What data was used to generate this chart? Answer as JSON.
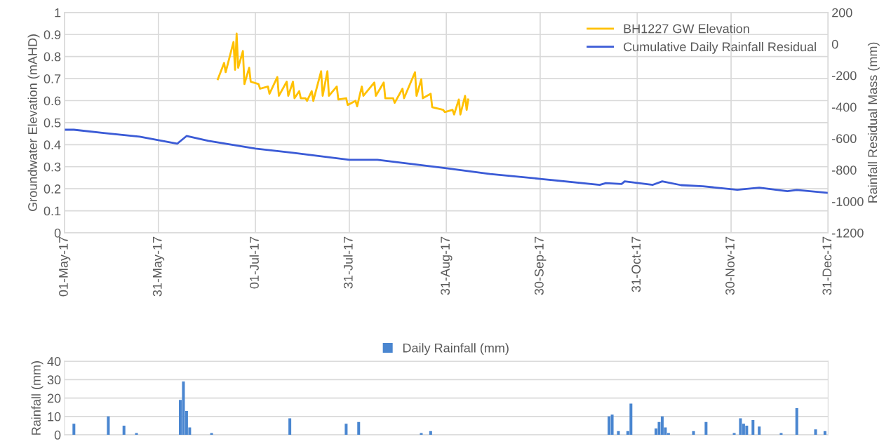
{
  "chart_data": [
    {
      "type": "line",
      "ylabel": "Groundwater Elevation (mAHD)",
      "y2label": "Rainfall Residual Mass (mm)",
      "xlim": [
        "2017-05-01",
        "2017-12-31"
      ],
      "xticks": [
        {
          "value": "2017-05-01",
          "label": "01-May-17"
        },
        {
          "value": "2017-05-31",
          "label": "31-May-17"
        },
        {
          "value": "2017-07-01",
          "label": "01-Jul-17"
        },
        {
          "value": "2017-07-31",
          "label": "31-Jul-17"
        },
        {
          "value": "2017-08-31",
          "label": "31-Aug-17"
        },
        {
          "value": "2017-09-30",
          "label": "30-Sep-17"
        },
        {
          "value": "2017-10-31",
          "label": "31-Oct-17"
        },
        {
          "value": "2017-11-30",
          "label": "30-Nov-17"
        },
        {
          "value": "2017-12-31",
          "label": "31-Dec-17"
        }
      ],
      "ylim": [
        0,
        1
      ],
      "yticks": [
        0,
        0.1,
        0.2,
        0.3,
        0.4,
        0.5,
        0.6,
        0.7,
        0.8,
        0.9,
        1
      ],
      "y2lim": [
        -1200,
        200
      ],
      "y2ticks": [
        -1200,
        -1000,
        -800,
        -600,
        -400,
        -200,
        0,
        200
      ],
      "grid": true,
      "legend": "top right",
      "series": [
        {
          "name": "BH1227 GW Elevation",
          "color": "#ffc000",
          "axis": "y",
          "x": [
            "2017-06-19T00:00",
            "2017-06-21T00:00",
            "2017-06-21T12:00",
            "2017-06-24T00:00",
            "2017-06-24T12:00",
            "2017-06-25T00:00",
            "2017-06-25T12:00",
            "2017-06-27T00:00",
            "2017-06-27T12:00",
            "2017-06-29T00:00",
            "2017-06-29T12:00",
            "2017-07-02T00:00",
            "2017-07-02T12:00",
            "2017-07-05T00:00",
            "2017-07-05T12:00",
            "2017-07-08T00:00",
            "2017-07-08T12:00",
            "2017-07-11T00:00",
            "2017-07-11T12:00",
            "2017-07-13T00:00",
            "2017-07-13T12:00",
            "2017-07-15T00:00",
            "2017-07-15T12:00",
            "2017-07-17T00:00",
            "2017-07-17T12:00",
            "2017-07-19T00:00",
            "2017-07-19T12:00",
            "2017-07-22T00:00",
            "2017-07-22T12:00",
            "2017-07-24T00:00",
            "2017-07-24T12:00",
            "2017-07-27T00:00",
            "2017-07-27T12:00",
            "2017-07-30T00:00",
            "2017-07-30T12:00",
            "2017-08-02T00:00",
            "2017-08-02T12:00",
            "2017-08-04T00:00",
            "2017-08-04T12:00",
            "2017-08-08T00:00",
            "2017-08-08T12:00",
            "2017-08-11T00:00",
            "2017-08-11T12:00",
            "2017-08-14T00:00",
            "2017-08-14T12:00",
            "2017-08-17T00:00",
            "2017-08-17T12:00",
            "2017-08-21T00:00",
            "2017-08-21T12:00",
            "2017-08-23T00:00",
            "2017-08-23T12:00",
            "2017-08-26T00:00",
            "2017-08-26T12:00",
            "2017-08-30T00:00",
            "2017-08-30T12:00",
            "2017-09-02T00:00",
            "2017-09-02T12:00",
            "2017-09-04T00:00",
            "2017-09-04T12:00",
            "2017-09-06T00:00",
            "2017-09-06T12:00",
            "2017-09-07T00:00"
          ],
          "values": [
            0.697,
            0.771,
            0.729,
            0.866,
            0.74,
            0.904,
            0.749,
            0.825,
            0.675,
            0.749,
            0.686,
            0.675,
            0.654,
            0.664,
            0.631,
            0.707,
            0.622,
            0.686,
            0.622,
            0.686,
            0.611,
            0.643,
            0.611,
            0.611,
            0.599,
            0.643,
            0.599,
            0.733,
            0.622,
            0.733,
            0.622,
            0.664,
            0.605,
            0.611,
            0.58,
            0.599,
            0.574,
            0.664,
            0.622,
            0.682,
            0.622,
            0.682,
            0.611,
            0.611,
            0.59,
            0.654,
            0.611,
            0.729,
            0.622,
            0.697,
            0.611,
            0.631,
            0.57,
            0.558,
            0.548,
            0.558,
            0.537,
            0.605,
            0.537,
            0.622,
            0.558,
            0.605
          ]
        },
        {
          "name": "Cumulative Daily Rainfall Residual",
          "color": "#3b5bd6",
          "axis": "y2",
          "x": [
            "2017-05-01",
            "2017-05-04",
            "2017-05-14",
            "2017-05-25",
            "2017-06-06",
            "2017-06-09",
            "2017-06-16",
            "2017-07-01",
            "2017-07-13",
            "2017-07-31",
            "2017-08-09",
            "2017-08-31",
            "2017-09-14",
            "2017-09-30",
            "2017-10-19",
            "2017-10-21",
            "2017-10-26",
            "2017-10-27",
            "2017-11-05",
            "2017-11-08",
            "2017-11-14",
            "2017-11-21",
            "2017-12-02",
            "2017-12-09",
            "2017-12-18",
            "2017-12-21",
            "2017-12-31"
          ],
          "values": [
            -545,
            -545,
            -567,
            -589,
            -634,
            -585,
            -616,
            -665,
            -692,
            -736,
            -736,
            -790,
            -826,
            -857,
            -895,
            -884,
            -890,
            -873,
            -895,
            -873,
            -897,
            -904,
            -927,
            -913,
            -935,
            -928,
            -946
          ]
        }
      ]
    },
    {
      "type": "bar",
      "ylabel": "Rainfall (mm)",
      "xlim": [
        "2017-05-01",
        "2017-12-31"
      ],
      "ylim": [
        0,
        40
      ],
      "yticks": [
        0,
        10,
        20,
        30,
        40
      ],
      "grid": "y",
      "legend": "top",
      "tick_labels": "y",
      "x": [
        "2017-05-04",
        "2017-05-15",
        "2017-05-20",
        "2017-05-24",
        "2017-06-07",
        "2017-06-08",
        "2017-06-09",
        "2017-06-10",
        "2017-06-17",
        "2017-07-12",
        "2017-07-30",
        "2017-08-03",
        "2017-08-23",
        "2017-08-26",
        "2017-10-22",
        "2017-10-23",
        "2017-10-25",
        "2017-10-28",
        "2017-10-29",
        "2017-11-06",
        "2017-11-07",
        "2017-11-08",
        "2017-11-09",
        "2017-11-10",
        "2017-11-18",
        "2017-11-22",
        "2017-12-01",
        "2017-12-03",
        "2017-12-04",
        "2017-12-05",
        "2017-12-07",
        "2017-12-09",
        "2017-12-16",
        "2017-12-21",
        "2017-12-27",
        "2017-12-30"
      ],
      "series": [
        {
          "name": "Daily Rainfall (mm)",
          "color": "#4a86d0",
          "values": [
            6,
            10,
            5,
            1,
            19,
            29,
            13,
            4,
            1,
            9,
            6,
            7,
            1,
            2,
            10,
            11,
            2,
            2,
            17,
            3.5,
            7,
            10,
            4,
            1,
            2,
            7,
            1,
            9,
            6,
            5,
            8,
            4.5,
            1,
            14.5,
            3,
            2
          ]
        }
      ]
    }
  ]
}
